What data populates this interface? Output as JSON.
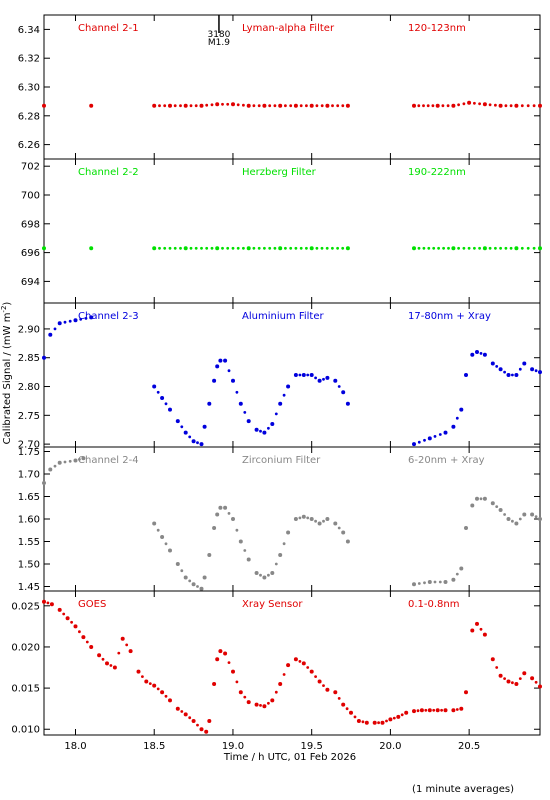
{
  "figure": {
    "ylabel": "Calibrated Signal / (mW m",
    "ylabel_sup": "-2",
    "ylabel_close": ")",
    "xlabel": "Time / h UTC, 01 Feb 2026",
    "footnote": "(1 minute averages)",
    "x_ticks": [
      "18.0",
      "18.5",
      "19.0",
      "19.5",
      "20.0",
      "20.5"
    ],
    "flare_marker": {
      "time": "19.0",
      "line1": "3180",
      "line2": "M1.9"
    }
  },
  "chart_data": [
    {
      "type": "scatter",
      "channel": "Channel 2-1",
      "filter": "Lyman-alpha Filter",
      "band": "120-123nm",
      "color": "#e00000",
      "ylim": [
        6.25,
        6.35
      ],
      "y_ticks": [
        "6.26",
        "6.28",
        "6.30",
        "6.32",
        "6.34"
      ],
      "x": [
        17.8,
        18.1,
        18.5,
        18.6,
        18.7,
        18.8,
        18.9,
        19.0,
        19.1,
        19.2,
        19.3,
        19.4,
        19.5,
        19.6,
        19.73,
        20.15,
        20.3,
        20.4,
        20.5,
        20.6,
        20.7,
        20.8,
        20.95
      ],
      "values": [
        6.287,
        6.287,
        6.287,
        6.287,
        6.287,
        6.287,
        6.288,
        6.288,
        6.287,
        6.287,
        6.287,
        6.287,
        6.287,
        6.287,
        6.287,
        6.287,
        6.287,
        6.287,
        6.289,
        6.288,
        6.287,
        6.287,
        6.287
      ]
    },
    {
      "type": "scatter",
      "channel": "Channel 2-2",
      "filter": "Herzberg Filter",
      "band": "190-222nm",
      "color": "#00e000",
      "ylim": [
        692.5,
        702.5
      ],
      "y_ticks": [
        "694",
        "696",
        "698",
        "700",
        "702"
      ],
      "x": [
        17.8,
        18.1,
        18.5,
        18.7,
        18.9,
        19.1,
        19.3,
        19.5,
        19.73,
        20.15,
        20.4,
        20.6,
        20.8,
        20.95
      ],
      "values": [
        696.3,
        696.3,
        696.3,
        696.3,
        696.3,
        696.3,
        696.3,
        696.3,
        696.3,
        696.3,
        696.3,
        696.3,
        696.3,
        696.3
      ]
    },
    {
      "type": "scatter",
      "channel": "Channel 2-3",
      "filter": "Aluminium Filter",
      "band": "17-80nm + Xray",
      "color": "#0000dd",
      "ylim": [
        2.695,
        2.945
      ],
      "y_ticks": [
        "2.70",
        "2.75",
        "2.80",
        "2.85",
        "2.90"
      ],
      "x": [
        17.8,
        17.84,
        17.9,
        18.0,
        18.1,
        18.5,
        18.55,
        18.6,
        18.65,
        18.7,
        18.75,
        18.8,
        18.82,
        18.85,
        18.88,
        18.9,
        18.92,
        18.95,
        19.0,
        19.05,
        19.1,
        19.15,
        19.2,
        19.25,
        19.3,
        19.35,
        19.4,
        19.45,
        19.5,
        19.55,
        19.6,
        19.65,
        19.7,
        19.73,
        20.15,
        20.25,
        20.35,
        20.4,
        20.45,
        20.48,
        20.52,
        20.55,
        20.6,
        20.65,
        20.7,
        20.75,
        20.8,
        20.85,
        20.9,
        20.95
      ],
      "values": [
        2.85,
        2.89,
        2.91,
        2.915,
        2.92,
        2.8,
        2.78,
        2.76,
        2.74,
        2.72,
        2.705,
        2.7,
        2.73,
        2.77,
        2.81,
        2.835,
        2.845,
        2.845,
        2.81,
        2.77,
        2.74,
        2.725,
        2.72,
        2.735,
        2.77,
        2.8,
        2.82,
        2.82,
        2.82,
        2.81,
        2.815,
        2.81,
        2.79,
        2.77,
        2.7,
        2.71,
        2.72,
        2.73,
        2.76,
        2.82,
        2.855,
        2.86,
        2.855,
        2.84,
        2.83,
        2.82,
        2.82,
        2.84,
        2.83,
        2.825
      ]
    },
    {
      "type": "scatter",
      "channel": "Channel 2-4",
      "filter": "Zirconium Filter",
      "band": "6-20nm + Xray",
      "color": "#888888",
      "ylim": [
        1.44,
        1.76
      ],
      "y_ticks": [
        "1.45",
        "1.50",
        "1.55",
        "1.60",
        "1.65",
        "1.70",
        "1.75"
      ],
      "x": [
        17.8,
        17.84,
        17.9,
        18.0,
        18.05,
        18.5,
        18.55,
        18.6,
        18.65,
        18.7,
        18.75,
        18.8,
        18.82,
        18.85,
        18.88,
        18.9,
        18.92,
        18.95,
        19.0,
        19.05,
        19.1,
        19.15,
        19.2,
        19.25,
        19.3,
        19.35,
        19.4,
        19.45,
        19.5,
        19.55,
        19.6,
        19.65,
        19.7,
        19.73,
        20.15,
        20.25,
        20.35,
        20.4,
        20.45,
        20.48,
        20.52,
        20.55,
        20.6,
        20.65,
        20.7,
        20.75,
        20.8,
        20.85,
        20.9,
        20.95
      ],
      "values": [
        1.68,
        1.71,
        1.725,
        1.73,
        1.735,
        1.59,
        1.56,
        1.53,
        1.5,
        1.47,
        1.455,
        1.445,
        1.47,
        1.52,
        1.58,
        1.61,
        1.625,
        1.625,
        1.6,
        1.55,
        1.51,
        1.48,
        1.47,
        1.48,
        1.52,
        1.57,
        1.6,
        1.605,
        1.6,
        1.59,
        1.6,
        1.59,
        1.57,
        1.55,
        1.455,
        1.46,
        1.46,
        1.465,
        1.49,
        1.58,
        1.63,
        1.645,
        1.645,
        1.635,
        1.62,
        1.6,
        1.59,
        1.61,
        1.61,
        1.6
      ]
    },
    {
      "type": "scatter",
      "channel": "GOES",
      "filter": "Xray Sensor",
      "band": "0.1-0.8nm",
      "color": "#e00000",
      "ylim": [
        0.0093,
        0.0268
      ],
      "y_ticks": [
        "0.010",
        "0.015",
        "0.020",
        "0.025"
      ],
      "x": [
        17.8,
        17.85,
        17.9,
        17.95,
        18.0,
        18.05,
        18.1,
        18.15,
        18.2,
        18.25,
        18.3,
        18.35,
        18.4,
        18.45,
        18.5,
        18.55,
        18.6,
        18.65,
        18.7,
        18.75,
        18.8,
        18.83,
        18.85,
        18.88,
        18.9,
        18.92,
        18.95,
        19.0,
        19.05,
        19.1,
        19.15,
        19.2,
        19.25,
        19.3,
        19.35,
        19.4,
        19.45,
        19.5,
        19.55,
        19.6,
        19.65,
        19.7,
        19.75,
        19.8,
        19.85,
        19.9,
        19.95,
        20.0,
        20.05,
        20.1,
        20.15,
        20.2,
        20.25,
        20.3,
        20.35,
        20.4,
        20.45,
        20.48,
        20.52,
        20.55,
        20.6,
        20.65,
        20.7,
        20.75,
        20.8,
        20.85,
        20.9,
        20.95
      ],
      "values": [
        0.0255,
        0.0252,
        0.0245,
        0.0235,
        0.0225,
        0.0212,
        0.02,
        0.019,
        0.018,
        0.0175,
        0.021,
        0.0195,
        0.017,
        0.0158,
        0.0153,
        0.0145,
        0.0135,
        0.0125,
        0.0118,
        0.011,
        0.01,
        0.0097,
        0.011,
        0.0155,
        0.0185,
        0.0195,
        0.0192,
        0.017,
        0.0145,
        0.0133,
        0.013,
        0.0128,
        0.0135,
        0.0155,
        0.0178,
        0.0185,
        0.018,
        0.017,
        0.0158,
        0.0148,
        0.0145,
        0.013,
        0.012,
        0.011,
        0.0108,
        0.0108,
        0.0108,
        0.0112,
        0.0115,
        0.012,
        0.0122,
        0.0123,
        0.0123,
        0.0123,
        0.0123,
        0.0123,
        0.0125,
        0.0145,
        0.022,
        0.0228,
        0.0215,
        0.0185,
        0.0165,
        0.0158,
        0.0155,
        0.0168,
        0.0162,
        0.0152
      ]
    }
  ]
}
